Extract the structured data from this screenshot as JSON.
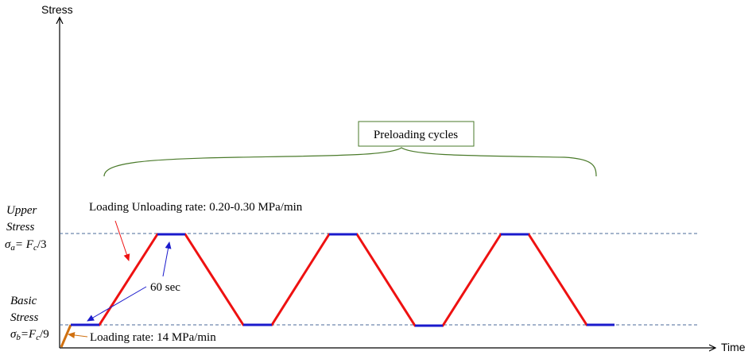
{
  "axes": {
    "y_label": "Stress",
    "x_label": "Time"
  },
  "labels": {
    "upper_stress_1": "Upper",
    "upper_stress_2": "Stress",
    "upper_formula_sigma": "σ",
    "upper_formula_sub": "a",
    "upper_formula_eq": "= F",
    "upper_formula_c": "c",
    "upper_formula_tail": "/3",
    "basic_stress_1": "Basic",
    "basic_stress_2": "Stress",
    "basic_formula_sigma": "σ",
    "basic_formula_sub": "b",
    "basic_formula_eq": "=F",
    "basic_formula_c": "c",
    "basic_formula_tail": "/9"
  },
  "annotations": {
    "preloading": "Preloading cycles",
    "loading_unloading_rate": "Loading Unloading rate: 0.20-0.30 MPa/min",
    "hold_time": "60 sec",
    "loading_rate": "Loading rate: 14 MPa/min"
  },
  "colors": {
    "ramp": "#ee1111",
    "hold": "#1a1acc",
    "initial_load": "#d07010",
    "brace": "#4a7a2a",
    "guide": "#4a6a9a",
    "axis": "#000000"
  }
}
